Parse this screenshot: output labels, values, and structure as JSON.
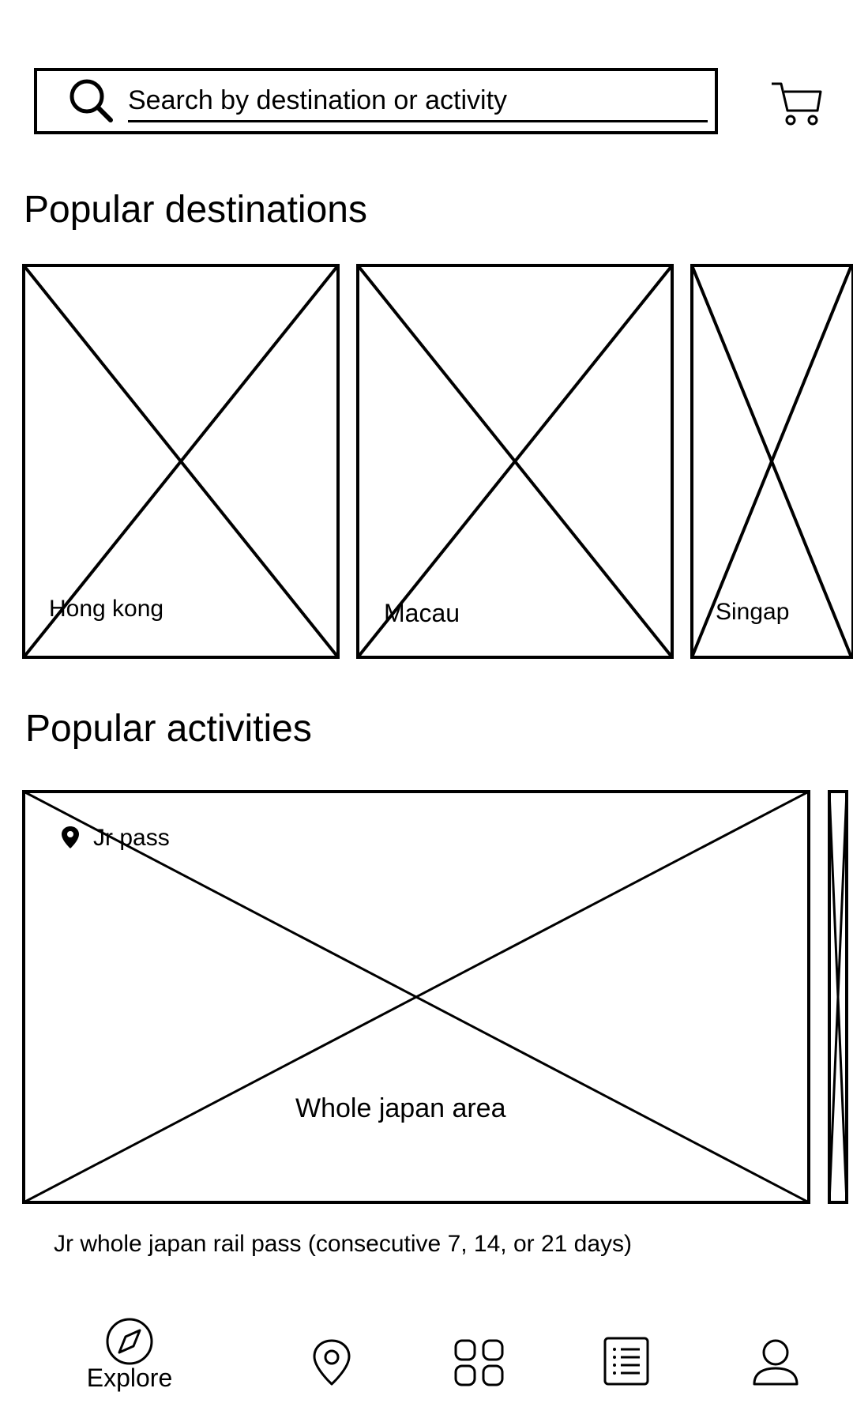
{
  "search": {
    "placeholder": "Search by destination or activity",
    "icon": "search-icon"
  },
  "header": {
    "cart_icon": "cart-icon"
  },
  "destinations": {
    "title": "Popular destinations",
    "cards": [
      {
        "label": "Hong kong"
      },
      {
        "label": "Macau"
      },
      {
        "label": "Singap"
      }
    ]
  },
  "activities": {
    "title": "Popular activities",
    "cards": [
      {
        "tag": "Jr pass",
        "area": "Whole japan area",
        "caption": "Jr whole japan rail pass (consecutive 7, 14, or 21 days)"
      }
    ]
  },
  "bottom_nav": {
    "items": [
      {
        "label": "Explore",
        "icon": "compass-icon"
      },
      {
        "label": "",
        "icon": "map-pin-icon"
      },
      {
        "label": "",
        "icon": "grid-icon"
      },
      {
        "label": "",
        "icon": "list-icon"
      },
      {
        "label": "",
        "icon": "user-icon"
      }
    ]
  }
}
